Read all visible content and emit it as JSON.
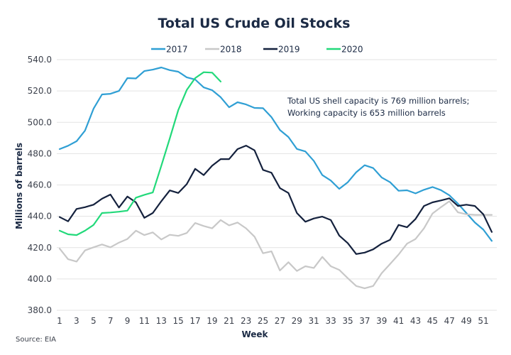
{
  "chart_data": {
    "type": "line",
    "title": "Total US Crude Oil Stocks",
    "xlabel": "Week",
    "ylabel": "Millions of barrels",
    "ylim": [
      380,
      540
    ],
    "yticks": [
      380,
      400,
      420,
      440,
      460,
      480,
      500,
      520,
      540
    ],
    "ytick_labels": [
      "380.0",
      "400.0",
      "420.0",
      "440.0",
      "460.0",
      "480.0",
      "500.0",
      "520.0",
      "540.0"
    ],
    "xlim": [
      1,
      52
    ],
    "xticks": [
      1,
      3,
      5,
      7,
      9,
      11,
      13,
      15,
      17,
      19,
      21,
      23,
      25,
      27,
      29,
      31,
      33,
      35,
      37,
      39,
      41,
      43,
      45,
      47,
      49,
      51
    ],
    "grid": "horizontal",
    "legend_position": "top-center",
    "annotation": {
      "line1": "Total US shell capacity is 769 million barrels;",
      "line2": "Working capacity is 653 million barrels"
    },
    "source": "Source: EIA",
    "series": [
      {
        "name": "2017",
        "color": "#2f9fd4",
        "values": [
          482.9,
          485.0,
          487.9,
          494.7,
          508.7,
          517.8,
          518.2,
          520.0,
          528.2,
          528.0,
          532.7,
          533.6,
          535.0,
          533.3,
          532.3,
          528.7,
          527.3,
          522.3,
          520.5,
          516.0,
          509.6,
          512.8,
          511.4,
          509.2,
          509.0,
          503.3,
          495.1,
          490.6,
          483.0,
          481.4,
          475.3,
          466.3,
          462.8,
          457.5,
          461.7,
          468.1,
          472.6,
          470.8,
          464.8,
          461.7,
          456.3,
          456.6,
          454.6,
          456.9,
          458.7,
          456.7,
          453.4,
          448.1,
          442.1,
          436.0,
          431.5,
          424.3
        ]
      },
      {
        "name": "2018",
        "color": "#c8c8c8",
        "values": [
          419.4,
          412.6,
          411.1,
          418.2,
          420.2,
          422.0,
          420.2,
          423.2,
          425.5,
          430.8,
          428.0,
          429.7,
          425.2,
          428.2,
          427.5,
          429.3,
          435.7,
          433.8,
          432.3,
          437.6,
          434.2,
          436.0,
          432.3,
          427.0,
          416.4,
          417.6,
          405.4,
          410.7,
          405.1,
          408.1,
          407.0,
          414.1,
          408.1,
          405.8,
          400.5,
          395.5,
          394.0,
          395.5,
          403.6,
          409.6,
          415.6,
          422.5,
          425.5,
          432.3,
          441.8,
          445.8,
          449.6,
          442.5,
          441.3,
          440.9,
          440.9,
          440.9
        ]
      },
      {
        "name": "2019",
        "color": "#14213d",
        "values": [
          439.5,
          436.8,
          444.7,
          445.8,
          447.4,
          451.2,
          453.9,
          445.6,
          452.6,
          448.9,
          439.0,
          442.1,
          449.6,
          456.5,
          454.9,
          460.5,
          470.3,
          466.3,
          472.3,
          476.5,
          476.5,
          482.9,
          485.1,
          482.1,
          469.6,
          467.8,
          458.0,
          454.9,
          442.1,
          436.5,
          438.6,
          439.8,
          437.6,
          427.7,
          422.9,
          415.9,
          416.8,
          418.9,
          422.5,
          425.0,
          434.5,
          433.0,
          438.3,
          446.6,
          448.9,
          450.1,
          451.5,
          446.6,
          447.4,
          446.6,
          441.3,
          430.0
        ]
      },
      {
        "name": "2020",
        "color": "#22d97a",
        "values": [
          430.8,
          428.5,
          428.0,
          430.8,
          434.5,
          442.1,
          442.4,
          442.9,
          443.6,
          451.9,
          453.7,
          455.2,
          472.3,
          489.7,
          507.8,
          520.6,
          528.2,
          532.0,
          531.7,
          526.0
        ]
      }
    ]
  }
}
